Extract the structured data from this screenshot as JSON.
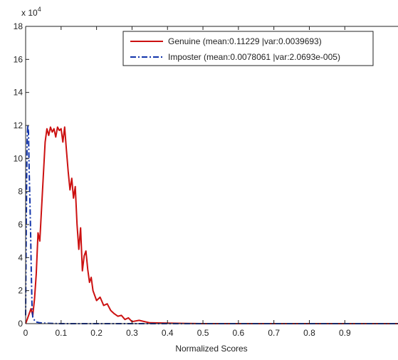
{
  "chart_data": {
    "type": "line",
    "xlabel": "Normalized Scores",
    "ylabel": "",
    "title": "",
    "y_multiplier_label": "x 10",
    "y_multiplier_exponent": "4",
    "xlim": [
      0,
      1.05
    ],
    "ylim": [
      0,
      18
    ],
    "x_ticks": [
      0,
      0.1,
      0.2,
      0.3,
      0.4,
      0.5,
      0.6,
      0.7,
      0.8,
      0.9
    ],
    "x_tick_labels": [
      "0",
      "0.1",
      "0.2",
      "0.3",
      "0.4",
      "0.5",
      "0.6",
      "0.7",
      "0.8",
      "0.9"
    ],
    "y_ticks": [
      0,
      2,
      4,
      6,
      8,
      10,
      12,
      14,
      16,
      18
    ],
    "y_tick_labels": [
      "0",
      "2",
      "4",
      "6",
      "8",
      "10",
      "12",
      "14",
      "16",
      "18"
    ],
    "grid": false,
    "legend_position": "top-right",
    "series": [
      {
        "name": "Genuine (mean:0.11229 |var:0.0039693)",
        "color": "#cc1111",
        "line_style": "solid",
        "x": [
          0.0,
          0.005,
          0.01,
          0.015,
          0.02,
          0.025,
          0.03,
          0.035,
          0.04,
          0.045,
          0.05,
          0.055,
          0.06,
          0.065,
          0.07,
          0.075,
          0.08,
          0.085,
          0.09,
          0.095,
          0.1,
          0.105,
          0.11,
          0.115,
          0.12,
          0.125,
          0.13,
          0.135,
          0.14,
          0.145,
          0.15,
          0.155,
          0.16,
          0.165,
          0.17,
          0.175,
          0.18,
          0.185,
          0.19,
          0.195,
          0.2,
          0.21,
          0.22,
          0.23,
          0.24,
          0.25,
          0.26,
          0.27,
          0.28,
          0.29,
          0.3,
          0.32,
          0.35,
          0.4,
          0.5,
          0.6,
          0.7,
          0.8,
          0.9,
          1.0,
          1.05
        ],
        "y": [
          0.0,
          0.3,
          0.6,
          0.9,
          0.5,
          1.5,
          3.0,
          5.5,
          5.0,
          7.0,
          9.0,
          11.0,
          11.8,
          11.4,
          11.9,
          11.6,
          11.8,
          11.3,
          11.9,
          11.7,
          11.8,
          11.0,
          11.9,
          10.5,
          9.2,
          8.1,
          8.8,
          7.6,
          8.3,
          6.0,
          4.5,
          5.8,
          3.2,
          4.1,
          4.4,
          3.3,
          2.5,
          2.8,
          2.0,
          1.7,
          1.4,
          1.6,
          1.1,
          1.2,
          0.8,
          0.6,
          0.45,
          0.5,
          0.25,
          0.35,
          0.12,
          0.2,
          0.05,
          0.03,
          0.0,
          0.0,
          0.0,
          0.0,
          0.0,
          0.0,
          0.0
        ]
      },
      {
        "name": "Imposter (mean:0.0078061 |var:2.0693e-005)",
        "color": "#1133aa",
        "line_style": "dashdot",
        "x": [
          0.0,
          0.002,
          0.004,
          0.006,
          0.008,
          0.01,
          0.012,
          0.014,
          0.016,
          0.018,
          0.02,
          0.025,
          0.03,
          0.04,
          0.06,
          0.1,
          0.2,
          0.4,
          0.7,
          1.05
        ],
        "y": [
          0.5,
          6.5,
          11.0,
          12.0,
          11.6,
          9.2,
          7.5,
          5.5,
          3.0,
          1.0,
          0.4,
          0.2,
          0.1,
          0.05,
          0.02,
          0.0,
          0.0,
          0.0,
          0.0,
          0.0
        ]
      }
    ]
  }
}
